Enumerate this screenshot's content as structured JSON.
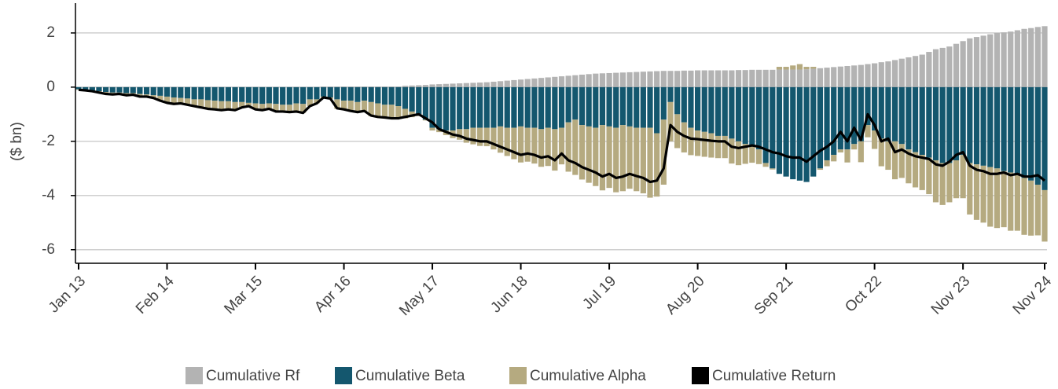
{
  "chart_data": {
    "type": "bar",
    "y_label": "($ bn)",
    "categories": [
      "Jan 13",
      null,
      null,
      null,
      null,
      null,
      null,
      null,
      null,
      null,
      null,
      null,
      null,
      "Feb 14",
      null,
      null,
      null,
      null,
      null,
      null,
      null,
      null,
      null,
      null,
      null,
      null,
      "Mar 15",
      null,
      null,
      null,
      null,
      null,
      null,
      null,
      null,
      null,
      null,
      null,
      null,
      "Apr 16",
      null,
      null,
      null,
      null,
      null,
      null,
      null,
      null,
      null,
      null,
      null,
      null,
      "May 17",
      null,
      null,
      null,
      null,
      null,
      null,
      null,
      null,
      null,
      null,
      null,
      null,
      "Jun 18",
      null,
      null,
      null,
      null,
      null,
      null,
      null,
      null,
      null,
      null,
      null,
      null,
      "Jul 19",
      null,
      null,
      null,
      null,
      null,
      null,
      null,
      null,
      null,
      null,
      null,
      null,
      "Aug 20",
      null,
      null,
      null,
      null,
      null,
      null,
      null,
      null,
      null,
      null,
      null,
      null,
      "Sep 21",
      null,
      null,
      null,
      null,
      null,
      null,
      null,
      null,
      null,
      null,
      null,
      null,
      "Oct 22",
      null,
      null,
      null,
      null,
      null,
      null,
      null,
      null,
      null,
      null,
      null,
      null,
      "Nov 23",
      null,
      null,
      null,
      null,
      null,
      null,
      null,
      null,
      null,
      null,
      null,
      "Nov 24"
    ],
    "series": [
      {
        "name": "Cumulative Rf",
        "type": "bar",
        "color": "#b3b3b3",
        "values": [
          0,
          0,
          0,
          0,
          0,
          0,
          0,
          0,
          0,
          0,
          0,
          0,
          0,
          0,
          0,
          0,
          0,
          0,
          0,
          0,
          0,
          0,
          0,
          0,
          0,
          0,
          0,
          0,
          0,
          0,
          0,
          0,
          0,
          0,
          0,
          0,
          0.02,
          0.02,
          0.02,
          0.02,
          0.02,
          0.02,
          0.02,
          0.02,
          0.02,
          0.02,
          0.02,
          0.02,
          0.05,
          0.06,
          0.07,
          0.08,
          0.1,
          0.11,
          0.12,
          0.13,
          0.14,
          0.15,
          0.16,
          0.17,
          0.18,
          0.2,
          0.22,
          0.24,
          0.26,
          0.28,
          0.3,
          0.32,
          0.34,
          0.36,
          0.38,
          0.4,
          0.42,
          0.44,
          0.46,
          0.48,
          0.5,
          0.51,
          0.52,
          0.53,
          0.54,
          0.55,
          0.56,
          0.57,
          0.58,
          0.59,
          0.6,
          0.6,
          0.6,
          0.61,
          0.61,
          0.62,
          0.62,
          0.62,
          0.62,
          0.62,
          0.62,
          0.63,
          0.63,
          0.64,
          0.64,
          0.64,
          0.64,
          0.65,
          0.65,
          0.65,
          0.65,
          0.66,
          0.68,
          0.7,
          0.72,
          0.74,
          0.76,
          0.78,
          0.8,
          0.82,
          0.85,
          0.88,
          0.92,
          0.95,
          1,
          1.05,
          1.1,
          1.15,
          1.2,
          1.3,
          1.4,
          1.45,
          1.5,
          1.6,
          1.7,
          1.8,
          1.85,
          1.9,
          1.95,
          2,
          2.02,
          2.05,
          2.1,
          2.15,
          2.18,
          2.22,
          2.25
        ]
      },
      {
        "name": "Cumulative Beta",
        "type": "bar",
        "color": "#14576e",
        "values": [
          -0.08,
          -0.1,
          -0.12,
          -0.15,
          -0.18,
          -0.2,
          -0.2,
          -0.22,
          -0.22,
          -0.25,
          -0.27,
          -0.3,
          -0.32,
          -0.35,
          -0.38,
          -0.4,
          -0.42,
          -0.45,
          -0.45,
          -0.48,
          -0.5,
          -0.52,
          -0.52,
          -0.55,
          -0.55,
          -0.58,
          -0.6,
          -0.62,
          -0.6,
          -0.62,
          -0.65,
          -0.65,
          -0.6,
          -0.62,
          -0.45,
          -0.45,
          -0.35,
          -0.38,
          -0.45,
          -0.5,
          -0.5,
          -0.55,
          -0.5,
          -0.55,
          -0.6,
          -0.65,
          -0.65,
          -0.7,
          -0.8,
          -0.9,
          -1,
          -1.2,
          -1.5,
          -1.55,
          -1.6,
          -1.6,
          -1.55,
          -1.55,
          -1.5,
          -1.5,
          -1.5,
          -1.5,
          -1.45,
          -1.5,
          -1.5,
          -1.45,
          -1.5,
          -1.5,
          -1.55,
          -1.5,
          -1.55,
          -1.5,
          -1.3,
          -1.2,
          -1.4,
          -1.45,
          -1.5,
          -1.4,
          -1.45,
          -1.5,
          -1.4,
          -1.45,
          -1.5,
          -1.5,
          -1.5,
          -1.7,
          -1.2,
          -0.55,
          -1,
          -1.3,
          -1.5,
          -1.6,
          -1.65,
          -1.7,
          -1.8,
          -1.8,
          -1.9,
          -2,
          -2.1,
          -2.2,
          -2.3,
          -2.8,
          -3,
          -3.2,
          -3.3,
          -3.4,
          -3.45,
          -3.5,
          -3.3,
          -3,
          -2.7,
          -2.5,
          -2.3,
          -2.3,
          -2.1,
          -2,
          -1.4,
          -1.6,
          -1.9,
          -2,
          -2,
          -2.1,
          -2.3,
          -2.4,
          -2.5,
          -2.6,
          -2.7,
          -2.8,
          -2.8,
          -2.7,
          -2.5,
          -2.8,
          -2.85,
          -2.9,
          -2.95,
          -3,
          -3.1,
          -3.15,
          -3.25,
          -3.35,
          -3.45,
          -3.6,
          -3.8
        ]
      },
      {
        "name": "Cumulative Alpha",
        "type": "bar",
        "color": "#b5aa80",
        "values": [
          -0.02,
          -0.02,
          -0.03,
          -0.05,
          -0.07,
          -0.07,
          -0.05,
          -0.08,
          -0.06,
          -0.1,
          -0.08,
          -0.1,
          -0.18,
          -0.23,
          -0.24,
          -0.2,
          -0.23,
          -0.25,
          -0.3,
          -0.32,
          -0.32,
          -0.33,
          -0.3,
          -0.3,
          -0.2,
          -0.12,
          -0.22,
          -0.23,
          -0.2,
          -0.28,
          -0.25,
          -0.27,
          -0.3,
          -0.33,
          -0.25,
          -0.15,
          -0.05,
          -0.06,
          -0.35,
          -0.34,
          -0.4,
          -0.39,
          -0.4,
          -0.52,
          -0.52,
          -0.49,
          -0.52,
          -0.47,
          -0.35,
          -0.21,
          -0.07,
          -0.03,
          -0.1,
          -0.11,
          -0.17,
          -0.28,
          -0.39,
          -0.5,
          -0.61,
          -0.67,
          -0.68,
          -0.8,
          -0.97,
          -1.04,
          -1.16,
          -1.33,
          -1.25,
          -1.32,
          -1.39,
          -1.41,
          -1.53,
          -1.35,
          -1.82,
          -2.04,
          -2.01,
          -2.08,
          -2.15,
          -2.41,
          -2.27,
          -2.38,
          -2.44,
          -2.3,
          -2.34,
          -2.42,
          -2.58,
          -2.34,
          -2.4,
          -1.45,
          -1.25,
          -1.11,
          -1.01,
          -0.94,
          -0.92,
          -0.9,
          -0.82,
          -0.82,
          -0.92,
          -0.88,
          -0.73,
          -0.59,
          -0.54,
          -0.14,
          -0.04,
          0.1,
          0.1,
          0.15,
          0.2,
          0.09,
          0.07,
          -0.05,
          -0.22,
          -0.24,
          -0.11,
          -0.48,
          -0.2,
          -0.77,
          -0.45,
          -0.68,
          -1.02,
          -1.05,
          -1.4,
          -1.25,
          -1.25,
          -1.3,
          -1.3,
          -1.35,
          -1.55,
          -1.55,
          -1.45,
          -1.4,
          -1.6,
          -1.9,
          -2.05,
          -2.1,
          -2.2,
          -2.2,
          -2.07,
          -2.15,
          -2.05,
          -2.1,
          -2.03,
          -1.87,
          -1.9
        ]
      },
      {
        "name": "Cumulative Return",
        "type": "line",
        "color": "#000000",
        "values": [
          -0.1,
          -0.12,
          -0.15,
          -0.2,
          -0.25,
          -0.27,
          -0.25,
          -0.3,
          -0.28,
          -0.35,
          -0.35,
          -0.4,
          -0.5,
          -0.58,
          -0.62,
          -0.6,
          -0.65,
          -0.7,
          -0.75,
          -0.8,
          -0.82,
          -0.85,
          -0.82,
          -0.85,
          -0.75,
          -0.7,
          -0.82,
          -0.85,
          -0.8,
          -0.9,
          -0.9,
          -0.92,
          -0.9,
          -0.95,
          -0.7,
          -0.6,
          -0.38,
          -0.42,
          -0.78,
          -0.82,
          -0.88,
          -0.92,
          -0.88,
          -1.05,
          -1.1,
          -1.12,
          -1.15,
          -1.15,
          -1.1,
          -1.05,
          -1,
          -1.15,
          -1.3,
          -1.55,
          -1.65,
          -1.75,
          -1.8,
          -1.9,
          -1.95,
          -2,
          -2,
          -2.1,
          -2.2,
          -2.3,
          -2.4,
          -2.5,
          -2.45,
          -2.5,
          -2.6,
          -2.55,
          -2.7,
          -2.45,
          -2.7,
          -2.8,
          -2.95,
          -3.05,
          -3.15,
          -3.3,
          -3.2,
          -3.35,
          -3.3,
          -3.2,
          -3.28,
          -3.35,
          -3.5,
          -3.45,
          -3,
          -1.4,
          -1.65,
          -1.8,
          -1.9,
          -1.92,
          -1.95,
          -1.98,
          -2,
          -2,
          -2.2,
          -2.25,
          -2.2,
          -2.15,
          -2.2,
          -2.3,
          -2.4,
          -2.45,
          -2.55,
          -2.6,
          -2.6,
          -2.75,
          -2.55,
          -2.35,
          -2.2,
          -2,
          -1.65,
          -2,
          -1.5,
          -1.95,
          -1,
          -1.4,
          -2,
          -1.9,
          -2.4,
          -2.3,
          -2.45,
          -2.55,
          -2.6,
          -2.65,
          -2.85,
          -2.9,
          -2.75,
          -2.5,
          -2.4,
          -2.9,
          -3.05,
          -3.1,
          -3.2,
          -3.2,
          -3.15,
          -3.25,
          -3.2,
          -3.3,
          -3.3,
          -3.25,
          -3.45
        ]
      }
    ],
    "ylim": [
      -6.5,
      3.1
    ],
    "yticks": [
      -6,
      -4,
      -2,
      0,
      2
    ],
    "grid": true,
    "legend": "bottom"
  }
}
